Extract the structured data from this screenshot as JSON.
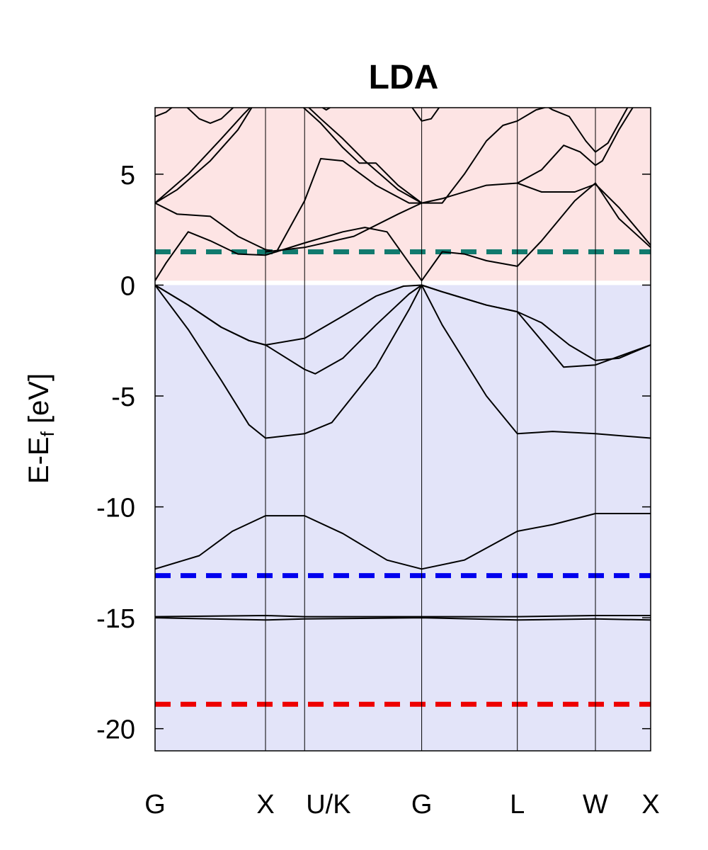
{
  "chart_data": {
    "type": "line",
    "title": "LDA",
    "ylabel": {
      "main": "E-E",
      "sub": "f",
      "unit": " [eV]"
    },
    "ylim": [
      -21,
      8
    ],
    "yticks": [
      5,
      0,
      -5,
      -10,
      -15,
      -20
    ],
    "ytick_labels": [
      "5",
      "0",
      "-5",
      "-10",
      "-15",
      "-20"
    ],
    "kpoints": [
      {
        "label": "G",
        "x": 0.0
      },
      {
        "label": "X",
        "x": 1.0
      },
      {
        "label": "U/K",
        "x": 1.354
      },
      {
        "label": "G",
        "x": 2.414
      },
      {
        "label": "L",
        "x": 3.28
      },
      {
        "label": "W",
        "x": 3.987
      },
      {
        "label": "X",
        "x": 4.487
      }
    ],
    "regions": [
      {
        "name": "conduction",
        "from": 0.2,
        "to": 8,
        "color": "#fde4e4"
      },
      {
        "name": "valence",
        "from": -21,
        "to": 0,
        "color": "#e3e4f9"
      }
    ],
    "reference_lines": [
      {
        "y": 1.5,
        "color": "#117a6e"
      },
      {
        "y": -13.1,
        "color": "#0000ee"
      },
      {
        "y": -18.9,
        "color": "#ee0000"
      }
    ],
    "bands": [
      {
        "name": "band-1",
        "points": [
          [
            0,
            -12.8
          ],
          [
            0.4,
            -12.2
          ],
          [
            0.7,
            -11.1
          ],
          [
            1.0,
            -10.4
          ],
          [
            1.354,
            -10.4
          ],
          [
            1.7,
            -11.2
          ],
          [
            2.1,
            -12.4
          ],
          [
            2.414,
            -12.8
          ],
          [
            2.8,
            -12.4
          ],
          [
            3.28,
            -11.1
          ],
          [
            3.6,
            -10.8
          ],
          [
            3.987,
            -10.3
          ],
          [
            4.487,
            -10.3
          ]
        ]
      },
      {
        "name": "band-2",
        "points": [
          [
            0,
            -15.0
          ],
          [
            1.0,
            -15.1
          ],
          [
            1.354,
            -15.05
          ],
          [
            2.414,
            -15.0
          ],
          [
            3.28,
            -15.1
          ],
          [
            3.987,
            -15.05
          ],
          [
            4.487,
            -15.1
          ]
        ]
      },
      {
        "name": "band-3",
        "points": [
          [
            0,
            -14.95
          ],
          [
            1.0,
            -14.9
          ],
          [
            1.354,
            -14.95
          ],
          [
            2.414,
            -14.95
          ],
          [
            3.28,
            -14.95
          ],
          [
            3.987,
            -14.9
          ],
          [
            4.487,
            -14.9
          ]
        ]
      },
      {
        "name": "band-4",
        "points": [
          [
            0,
            0
          ],
          [
            0.3,
            -2.0
          ],
          [
            0.6,
            -4.3
          ],
          [
            0.85,
            -6.3
          ],
          [
            1.0,
            -6.9
          ],
          [
            1.354,
            -6.7
          ],
          [
            1.6,
            -6.2
          ],
          [
            2.0,
            -3.7
          ],
          [
            2.3,
            -1.1
          ],
          [
            2.414,
            0
          ],
          [
            2.6,
            -1.8
          ],
          [
            3.0,
            -5.0
          ],
          [
            3.28,
            -6.7
          ],
          [
            3.6,
            -6.6
          ],
          [
            3.987,
            -6.7
          ],
          [
            4.487,
            -6.9
          ]
        ]
      },
      {
        "name": "band-5",
        "points": [
          [
            0,
            0
          ],
          [
            0.3,
            -0.9
          ],
          [
            0.6,
            -1.9
          ],
          [
            0.85,
            -2.5
          ],
          [
            1.0,
            -2.7
          ],
          [
            1.354,
            -2.4
          ],
          [
            1.7,
            -1.4
          ],
          [
            2.0,
            -0.5
          ],
          [
            2.25,
            -0.05
          ],
          [
            2.414,
            0
          ],
          [
            2.6,
            -0.3
          ],
          [
            3.0,
            -0.9
          ],
          [
            3.28,
            -1.2
          ],
          [
            3.5,
            -1.7
          ],
          [
            3.75,
            -2.7
          ],
          [
            3.987,
            -3.4
          ],
          [
            4.2,
            -3.3
          ],
          [
            4.487,
            -2.7
          ]
        ]
      },
      {
        "name": "band-6",
        "points": [
          [
            0,
            0
          ],
          [
            0.3,
            -0.9
          ],
          [
            0.6,
            -1.9
          ],
          [
            0.85,
            -2.5
          ],
          [
            1.0,
            -2.7
          ],
          [
            1.354,
            -3.8
          ],
          [
            1.45,
            -4.0
          ],
          [
            1.7,
            -3.3
          ],
          [
            2.0,
            -1.8
          ],
          [
            2.3,
            -0.4
          ],
          [
            2.414,
            0
          ],
          [
            2.6,
            -0.3
          ],
          [
            3.0,
            -0.9
          ],
          [
            3.28,
            -1.2
          ],
          [
            3.5,
            -2.5
          ],
          [
            3.7,
            -3.7
          ],
          [
            3.987,
            -3.6
          ],
          [
            4.487,
            -2.7
          ]
        ]
      },
      {
        "name": "band-7",
        "points": [
          [
            0,
            0.2
          ],
          [
            0.1,
            1.0
          ],
          [
            0.3,
            2.4
          ],
          [
            0.5,
            2.0
          ],
          [
            0.75,
            1.4
          ],
          [
            1.0,
            1.35
          ],
          [
            1.354,
            1.9
          ],
          [
            1.7,
            2.4
          ],
          [
            1.9,
            2.6
          ],
          [
            2.1,
            2.4
          ],
          [
            2.414,
            0.2
          ],
          [
            2.6,
            1.5
          ],
          [
            2.8,
            1.4
          ],
          [
            3.0,
            1.1
          ],
          [
            3.28,
            0.85
          ],
          [
            3.5,
            2.0
          ],
          [
            3.8,
            3.8
          ],
          [
            3.987,
            4.6
          ],
          [
            4.2,
            3.0
          ],
          [
            4.487,
            1.7
          ]
        ]
      },
      {
        "name": "band-8",
        "points": [
          [
            0,
            3.7
          ],
          [
            0.2,
            3.2
          ],
          [
            0.5,
            3.1
          ],
          [
            0.75,
            2.2
          ],
          [
            1.0,
            1.6
          ],
          [
            1.1,
            1.5
          ],
          [
            1.354,
            3.8
          ],
          [
            1.5,
            5.7
          ],
          [
            1.7,
            5.6
          ],
          [
            2.0,
            4.5
          ],
          [
            2.3,
            3.7
          ],
          [
            2.414,
            3.7
          ],
          [
            2.6,
            3.9
          ],
          [
            3.0,
            4.5
          ],
          [
            3.28,
            4.6
          ],
          [
            3.5,
            4.2
          ],
          [
            3.8,
            4.2
          ],
          [
            3.987,
            4.55
          ],
          [
            4.2,
            3.5
          ],
          [
            4.487,
            1.8
          ]
        ]
      },
      {
        "name": "band-9",
        "points": [
          [
            0,
            3.7
          ],
          [
            0.3,
            5.0
          ],
          [
            0.6,
            6.6
          ],
          [
            0.8,
            7.7
          ],
          [
            0.9,
            8.2
          ]
        ]
      },
      {
        "name": "band-10",
        "points": [
          [
            0,
            3.7
          ],
          [
            0.2,
            4.3
          ],
          [
            0.5,
            5.6
          ],
          [
            0.75,
            7.0
          ],
          [
            0.9,
            8.2
          ]
        ]
      },
      {
        "name": "band-11",
        "points": [
          [
            0,
            7.6
          ],
          [
            0.1,
            7.8
          ],
          [
            0.2,
            8.2
          ]
        ]
      },
      {
        "name": "band-12",
        "points": [
          [
            0.25,
            8.2
          ],
          [
            0.4,
            7.5
          ],
          [
            0.5,
            7.3
          ],
          [
            0.6,
            7.5
          ],
          [
            0.75,
            8.2
          ]
        ]
      },
      {
        "name": "band-13",
        "points": [
          [
            1.0,
            1.5
          ],
          [
            1.354,
            1.7
          ],
          [
            1.8,
            2.2
          ],
          [
            2.2,
            3.2
          ],
          [
            2.414,
            3.7
          ]
        ]
      },
      {
        "name": "band-14",
        "points": [
          [
            1.35,
            8.2
          ],
          [
            1.5,
            7.5
          ],
          [
            1.7,
            6.6
          ],
          [
            1.9,
            5.6
          ],
          [
            2.2,
            4.3
          ],
          [
            2.414,
            3.7
          ]
        ]
      },
      {
        "name": "band-15",
        "points": [
          [
            1.3,
            8.2
          ],
          [
            1.5,
            7.3
          ],
          [
            1.7,
            6.2
          ],
          [
            1.85,
            5.5
          ],
          [
            2.0,
            5.5
          ],
          [
            2.2,
            4.5
          ],
          [
            2.414,
            3.7
          ]
        ]
      },
      {
        "name": "band-16",
        "points": [
          [
            1.45,
            8.2
          ],
          [
            1.55,
            7.9
          ],
          [
            1.65,
            8.2
          ]
        ]
      },
      {
        "name": "band-17",
        "points": [
          [
            2.3,
            8.2
          ],
          [
            2.414,
            7.4
          ],
          [
            2.5,
            7.5
          ],
          [
            2.6,
            8.2
          ]
        ]
      },
      {
        "name": "band-18",
        "points": [
          [
            2.414,
            3.7
          ],
          [
            2.6,
            3.7
          ],
          [
            2.8,
            5.0
          ],
          [
            3.0,
            6.5
          ],
          [
            3.15,
            7.2
          ],
          [
            3.28,
            7.4
          ],
          [
            3.45,
            7.9
          ],
          [
            3.6,
            8.1
          ]
        ]
      },
      {
        "name": "band-19",
        "points": [
          [
            3.28,
            4.6
          ],
          [
            3.5,
            5.2
          ],
          [
            3.7,
            6.3
          ],
          [
            3.85,
            6.0
          ],
          [
            3.987,
            5.4
          ],
          [
            4.05,
            5.6
          ],
          [
            4.2,
            7.0
          ],
          [
            4.35,
            8.2
          ]
        ]
      },
      {
        "name": "band-20",
        "points": [
          [
            3.5,
            8.2
          ],
          [
            3.6,
            7.9
          ],
          [
            3.75,
            7.6
          ],
          [
            3.9,
            6.5
          ],
          [
            3.987,
            6.0
          ],
          [
            4.1,
            6.4
          ],
          [
            4.3,
            8.2
          ]
        ]
      }
    ]
  }
}
